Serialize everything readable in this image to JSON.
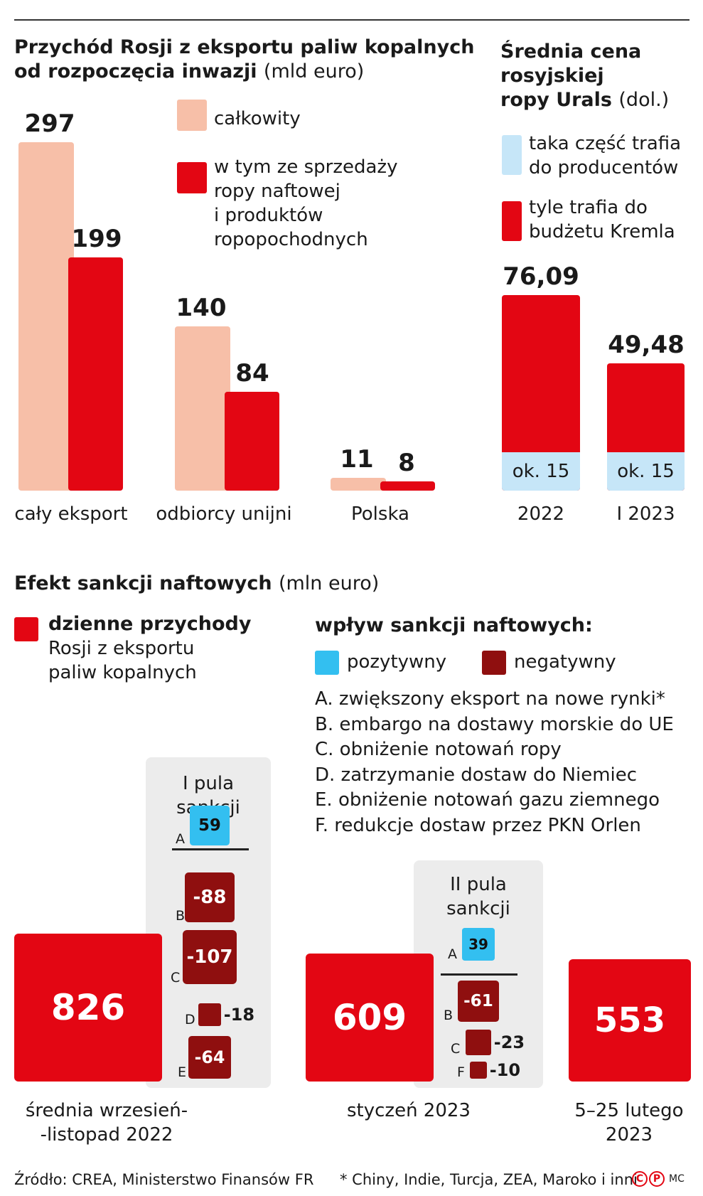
{
  "colors": {
    "total": "#f7bfa8",
    "oil": "#e30613",
    "producers": "#c6e6f8",
    "kremlin": "#e30613",
    "positive": "#33bff0",
    "negative": "#8f0f0f",
    "box": "#ececec"
  },
  "chart_data": [
    {
      "type": "bar",
      "title": "Przychód Rosji z eksportu paliw kopalnych od rozpoczęcia inwazji",
      "unit": "(mld euro)",
      "categories": [
        "cały eksport",
        "odbiorcy unijni",
        "Polska"
      ],
      "series": [
        {
          "name": "całkowity",
          "values": [
            297,
            140,
            11
          ]
        },
        {
          "name": "w tym ze sprzedaży ropy naftowej i produktów ropopochodnych",
          "values": [
            199,
            84,
            8
          ]
        }
      ],
      "data_labels": [
        [
          "297",
          "140",
          "11"
        ],
        [
          "199",
          "84",
          "8"
        ]
      ],
      "legend_lines": [
        "w tym ze sprzedaży",
        "ropy naftowej",
        "i produktów",
        "ropopochodnych"
      ],
      "ylim": [
        0,
        297
      ]
    },
    {
      "type": "bar",
      "title": "Średnia cena rosyjskiej ropy Urals",
      "title_lines": [
        "Średnia cena",
        "rosyjskiej",
        "ropy Urals"
      ],
      "unit": "(dol.)",
      "categories": [
        "2022",
        "I 2023"
      ],
      "values": [
        76.09,
        49.48
      ],
      "value_labels": [
        "76,09",
        "49,48"
      ],
      "producers_share": [
        15,
        15
      ],
      "producers_labels": [
        "ok. 15",
        "ok. 15"
      ],
      "legend": [
        {
          "name": "taka część trafia do producentów",
          "lines": [
            "taka część trafia",
            "do producentów"
          ]
        },
        {
          "name": "tyle trafia do budżetu Kremla",
          "lines": [
            "tyle trafia do",
            "budżetu Kremla"
          ]
        }
      ]
    },
    {
      "type": "bar",
      "title": "Efekt sankcji naftowych",
      "unit": "(mln euro)",
      "legend_main": {
        "bold": "dzienne przychody",
        "lines": [
          "Rosji z eksportu",
          "paliw kopalnych"
        ]
      },
      "impact_title": "wpływ sankcji naftowych:",
      "impact_legend": [
        "pozytywny",
        "negatywny"
      ],
      "notes": [
        "A. zwiększony eksport na nowe rynki*",
        "B. embargo na dostawy morskie do UE",
        "C. obniżenie notowań ropy",
        "D. zatrzymanie dostaw do Niemiec",
        "E. obniżenie notowań gazu ziemnego",
        "F. redukcje dostaw przez PKN Orlen"
      ],
      "periods": [
        {
          "label_lines": [
            "średnia wrzesień-",
            "-listopad 2022"
          ],
          "value": 826
        },
        {
          "label_lines": [
            "styczeń 2023"
          ],
          "value": 609
        },
        {
          "label_lines": [
            "5–25 lutego",
            "2023"
          ],
          "value": 553
        }
      ],
      "packages": [
        {
          "title_lines": [
            "I pula",
            "sankcji"
          ],
          "positive": {
            "key": "A",
            "value": 59
          },
          "negative": [
            {
              "key": "B",
              "value": -88
            },
            {
              "key": "C",
              "value": -107
            },
            {
              "key": "D",
              "value": -18
            },
            {
              "key": "E",
              "value": -64
            }
          ]
        },
        {
          "title_lines": [
            "II pula",
            "sankcji"
          ],
          "positive": {
            "key": "A",
            "value": 39
          },
          "negative": [
            {
              "key": "B",
              "value": -61
            },
            {
              "key": "C",
              "value": -23
            },
            {
              "key": "F",
              "value": -10
            }
          ]
        }
      ]
    }
  ],
  "footer": {
    "source": "Źródło: CREA, Ministerstwo Finansów FR",
    "note": "* Chiny, Indie, Turcja, ZEA, Maroko i inni",
    "c": "C",
    "p": "P",
    "author": "MC"
  }
}
